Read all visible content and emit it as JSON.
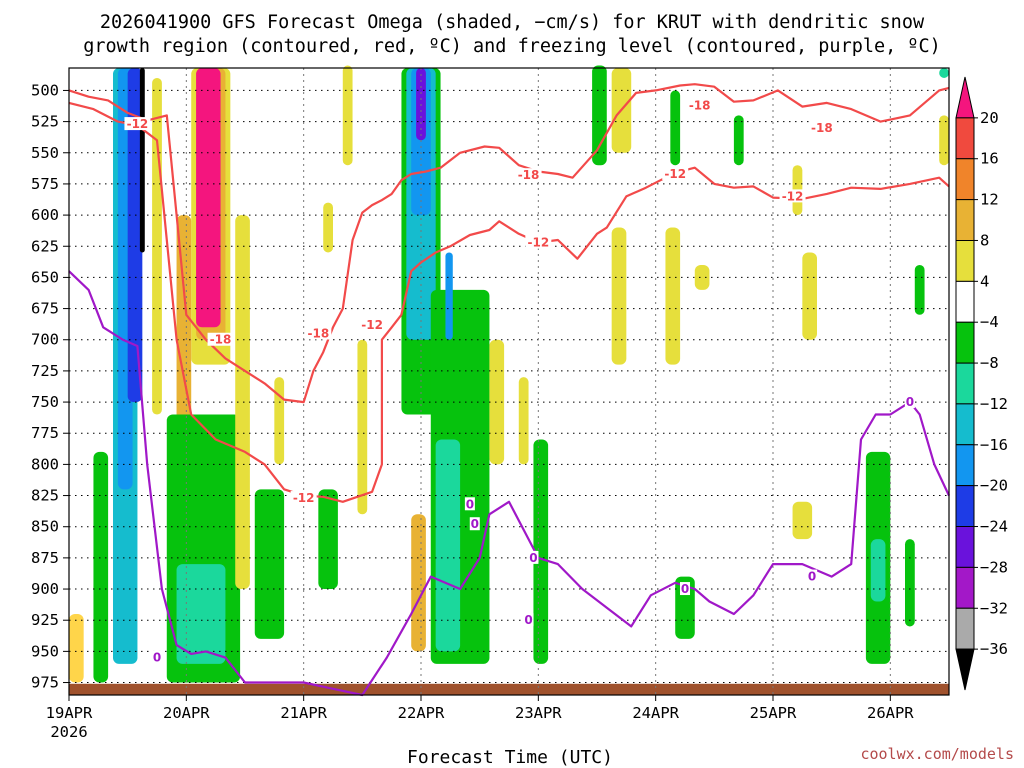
{
  "chart_data": {
    "type": "heatmap",
    "title_line1": "2026041900 GFS Forecast Omega (shaded, −cm/s) for KRUT with dendritic snow",
    "title_line2": "growth region (contoured, red, ºC) and freezing level (contoured, purple, ºC)",
    "xlabel": "Forecast Time (UTC)",
    "credit": "coolwx.com/models",
    "x_ticks": [
      {
        "label": "19APR",
        "label2": "2026",
        "t": 0
      },
      {
        "label": "20APR",
        "t": 24
      },
      {
        "label": "21APR",
        "t": 48
      },
      {
        "label": "22APR",
        "t": 72
      },
      {
        "label": "23APR",
        "t": 96
      },
      {
        "label": "24APR",
        "t": 120
      },
      {
        "label": "25APR",
        "t": 144
      },
      {
        "label": "26APR",
        "t": 168
      }
    ],
    "xlim": [
      0,
      180
    ],
    "y_ticks": [
      500,
      525,
      550,
      575,
      600,
      625,
      650,
      675,
      700,
      725,
      750,
      775,
      800,
      825,
      850,
      875,
      900,
      925,
      950,
      975
    ],
    "ylim": [
      482,
      985
    ],
    "grid": true,
    "colorbar": {
      "labels": [
        "20",
        "16",
        "12",
        "8",
        "4",
        "−4",
        "−8",
        "−12",
        "−16",
        "−20",
        "−24",
        "−28",
        "−32",
        "−36"
      ],
      "colors": [
        "#f4157e",
        "#f04a3e",
        "#f0842a",
        "#e8b234",
        "#e6df3c",
        "#ffffff",
        "#06c20d",
        "#1bd89c",
        "#15bcce",
        "#1296f0",
        "#1e3ce6",
        "#6a12dc",
        "#a318c8",
        "#aaaaaa",
        "#000000"
      ]
    },
    "ground": {
      "color": "#a0522d",
      "label": "terrain"
    },
    "omega_areas": [
      {
        "c": "#ffd54a",
        "t0": 0,
        "t1": 3,
        "p0": 920,
        "p1": 975
      },
      {
        "c": "#06c20d",
        "t0": 5,
        "t1": 8,
        "p0": 790,
        "p1": 975
      },
      {
        "c": "#15bcce",
        "t0": 9,
        "t1": 14,
        "p0": 482,
        "p1": 960
      },
      {
        "c": "#1296f0",
        "t0": 10,
        "t1": 13,
        "p0": 482,
        "p1": 820
      },
      {
        "c": "#1e3ce6",
        "t0": 12,
        "t1": 15,
        "p0": 482,
        "p1": 750
      },
      {
        "c": "#000000",
        "t0": 14.5,
        "t1": 15.5,
        "p0": 482,
        "p1": 630
      },
      {
        "c": "#e6df3c",
        "t0": 17,
        "t1": 19,
        "p0": 490,
        "p1": 760
      },
      {
        "c": "#e6df3c",
        "t0": 25,
        "t1": 33,
        "p0": 482,
        "p1": 720
      },
      {
        "c": "#e8b234",
        "t0": 26,
        "t1": 32,
        "p0": 482,
        "p1": 700
      },
      {
        "c": "#f4157e",
        "t0": 26,
        "t1": 31,
        "p0": 482,
        "p1": 690
      },
      {
        "c": "#e8b234",
        "t0": 22,
        "t1": 25,
        "p0": 600,
        "p1": 900
      },
      {
        "c": "#06c20d",
        "t0": 20,
        "t1": 35,
        "p0": 760,
        "p1": 975
      },
      {
        "c": "#1bd89c",
        "t0": 22,
        "t1": 32,
        "p0": 880,
        "p1": 960
      },
      {
        "c": "#e6df3c",
        "t0": 34,
        "t1": 37,
        "p0": 600,
        "p1": 900
      },
      {
        "c": "#e6df3c",
        "t0": 42,
        "t1": 44,
        "p0": 730,
        "p1": 800
      },
      {
        "c": "#06c20d",
        "t0": 38,
        "t1": 44,
        "p0": 820,
        "p1": 940
      },
      {
        "c": "#e6df3c",
        "t0": 52,
        "t1": 54,
        "p0": 590,
        "p1": 630
      },
      {
        "c": "#06c20d",
        "t0": 51,
        "t1": 55,
        "p0": 820,
        "p1": 900
      },
      {
        "c": "#e6df3c",
        "t0": 56,
        "t1": 58,
        "p0": 480,
        "p1": 560
      },
      {
        "c": "#e6df3c",
        "t0": 59,
        "t1": 61,
        "p0": 700,
        "p1": 840
      },
      {
        "c": "#06c20d",
        "t0": 68,
        "t1": 76,
        "p0": 482,
        "p1": 760
      },
      {
        "c": "#15bcce",
        "t0": 69,
        "t1": 75,
        "p0": 482,
        "p1": 700
      },
      {
        "c": "#1296f0",
        "t0": 70,
        "t1": 74,
        "p0": 482,
        "p1": 600
      },
      {
        "c": "#6a12dc",
        "t0": 71,
        "t1": 73,
        "p0": 482,
        "p1": 540
      },
      {
        "c": "#e8b234",
        "t0": 70,
        "t1": 73,
        "p0": 840,
        "p1": 950
      },
      {
        "c": "#06c20d",
        "t0": 74,
        "t1": 86,
        "p0": 660,
        "p1": 960
      },
      {
        "c": "#1bd89c",
        "t0": 75,
        "t1": 80,
        "p0": 780,
        "p1": 950
      },
      {
        "c": "#1296f0",
        "t0": 77,
        "t1": 78.5,
        "p0": 630,
        "p1": 700
      },
      {
        "c": "#e6df3c",
        "t0": 86,
        "t1": 89,
        "p0": 700,
        "p1": 800
      },
      {
        "c": "#e6df3c",
        "t0": 92,
        "t1": 94,
        "p0": 730,
        "p1": 800
      },
      {
        "c": "#06c20d",
        "t0": 95,
        "t1": 98,
        "p0": 780,
        "p1": 960
      },
      {
        "c": "#06c20d",
        "t0": 107,
        "t1": 110,
        "p0": 480,
        "p1": 560
      },
      {
        "c": "#e6df3c",
        "t0": 111,
        "t1": 115,
        "p0": 482,
        "p1": 550
      },
      {
        "c": "#e6df3c",
        "t0": 111,
        "t1": 114,
        "p0": 610,
        "p1": 720
      },
      {
        "c": "#06c20d",
        "t0": 123,
        "t1": 125,
        "p0": 500,
        "p1": 560
      },
      {
        "c": "#06c20d",
        "t0": 124,
        "t1": 128,
        "p0": 890,
        "p1": 940
      },
      {
        "c": "#e6df3c",
        "t0": 122,
        "t1": 125,
        "p0": 610,
        "p1": 720
      },
      {
        "c": "#e6df3c",
        "t0": 128,
        "t1": 131,
        "p0": 640,
        "p1": 660
      },
      {
        "c": "#06c20d",
        "t0": 136,
        "t1": 138,
        "p0": 520,
        "p1": 560
      },
      {
        "c": "#e6df3c",
        "t0": 148,
        "t1": 150,
        "p0": 560,
        "p1": 600
      },
      {
        "c": "#e6df3c",
        "t0": 150,
        "t1": 153,
        "p0": 630,
        "p1": 700
      },
      {
        "c": "#e6df3c",
        "t0": 148,
        "t1": 152,
        "p0": 830,
        "p1": 860
      },
      {
        "c": "#06c20d",
        "t0": 163,
        "t1": 168,
        "p0": 790,
        "p1": 960
      },
      {
        "c": "#1bd89c",
        "t0": 164,
        "t1": 167,
        "p0": 860,
        "p1": 910
      },
      {
        "c": "#06c20d",
        "t0": 173,
        "t1": 175,
        "p0": 640,
        "p1": 680
      },
      {
        "c": "#06c20d",
        "t0": 171,
        "t1": 173,
        "p0": 860,
        "p1": 930
      },
      {
        "c": "#e6df3c",
        "t0": 178,
        "t1": 180,
        "p0": 520,
        "p1": 560
      },
      {
        "c": "#1bd89c",
        "t0": 178,
        "t1": 180,
        "p0": 482,
        "p1": 490
      }
    ],
    "contours": [
      {
        "name": "-18",
        "color": "#f24a4a",
        "points": [
          [
            0,
            500
          ],
          [
            4,
            505
          ],
          [
            8,
            508
          ],
          [
            12,
            518
          ],
          [
            16,
            524
          ],
          [
            20,
            520
          ],
          [
            22,
            600
          ],
          [
            24,
            680
          ],
          [
            28,
            700
          ],
          [
            32,
            715
          ],
          [
            40,
            735
          ],
          [
            44,
            748
          ],
          [
            48,
            750
          ],
          [
            50,
            725
          ],
          [
            52,
            710
          ],
          [
            54,
            690
          ],
          [
            56,
            675
          ],
          [
            58,
            620
          ],
          [
            60,
            598
          ],
          [
            62,
            592
          ],
          [
            64,
            588
          ],
          [
            66,
            583
          ],
          [
            68,
            572
          ],
          [
            70,
            567
          ],
          [
            73,
            565
          ],
          [
            76,
            562
          ],
          [
            80,
            550
          ],
          [
            85,
            545
          ],
          [
            88,
            546
          ],
          [
            92,
            560
          ],
          [
            96,
            565
          ],
          [
            100,
            567
          ],
          [
            103,
            570
          ],
          [
            108,
            548
          ],
          [
            112,
            520
          ],
          [
            116,
            502
          ],
          [
            120,
            500
          ],
          [
            125,
            496
          ],
          [
            128,
            495
          ],
          [
            132,
            497
          ],
          [
            136,
            509
          ],
          [
            140,
            508
          ],
          [
            145,
            500
          ],
          [
            150,
            513
          ],
          [
            155,
            510
          ],
          [
            160,
            515
          ],
          [
            166,
            525
          ],
          [
            172,
            520
          ],
          [
            178,
            500
          ],
          [
            180,
            498
          ]
        ]
      },
      {
        "name": "-12",
        "color": "#f24a4a",
        "points": [
          [
            0,
            510
          ],
          [
            5,
            515
          ],
          [
            10,
            525
          ],
          [
            14,
            528
          ],
          [
            18,
            540
          ],
          [
            20,
            620
          ],
          [
            22,
            700
          ],
          [
            25,
            760
          ],
          [
            30,
            780
          ],
          [
            36,
            790
          ],
          [
            40,
            800
          ],
          [
            44,
            820
          ],
          [
            48,
            825
          ],
          [
            52,
            826
          ],
          [
            56,
            830
          ],
          [
            62,
            822
          ],
          [
            64,
            800
          ],
          [
            64,
            700
          ],
          [
            66,
            690
          ],
          [
            68,
            680
          ],
          [
            70,
            645
          ],
          [
            72,
            638
          ],
          [
            75,
            630
          ],
          [
            78,
            625
          ],
          [
            82,
            616
          ],
          [
            86,
            612
          ],
          [
            88,
            605
          ],
          [
            92,
            615
          ],
          [
            96,
            622
          ],
          [
            100,
            620
          ],
          [
            104,
            635
          ],
          [
            108,
            615
          ],
          [
            110,
            610
          ],
          [
            114,
            585
          ],
          [
            118,
            578
          ],
          [
            122,
            570
          ],
          [
            124,
            566
          ],
          [
            128,
            562
          ],
          [
            132,
            575
          ],
          [
            136,
            578
          ],
          [
            140,
            577
          ],
          [
            144,
            586
          ],
          [
            150,
            587
          ],
          [
            155,
            583
          ],
          [
            160,
            578
          ],
          [
            166,
            579
          ],
          [
            172,
            575
          ],
          [
            178,
            570
          ],
          [
            180,
            577
          ]
        ]
      },
      {
        "name": "0",
        "color": "#a018c8",
        "points": [
          [
            0,
            645
          ],
          [
            4,
            660
          ],
          [
            7,
            690
          ],
          [
            11,
            700
          ],
          [
            14,
            705
          ],
          [
            16,
            800
          ],
          [
            19,
            900
          ],
          [
            22,
            945
          ],
          [
            25,
            952
          ],
          [
            28,
            950
          ],
          [
            32,
            955
          ],
          [
            36,
            975
          ],
          [
            40,
            975
          ],
          [
            48,
            975
          ],
          [
            54,
            980
          ],
          [
            60,
            985
          ],
          [
            65,
            955
          ],
          [
            70,
            920
          ],
          [
            74,
            890
          ],
          [
            80,
            900
          ],
          [
            84,
            875
          ],
          [
            86,
            840
          ],
          [
            90,
            830
          ],
          [
            94,
            860
          ],
          [
            96,
            875
          ],
          [
            100,
            880
          ],
          [
            105,
            900
          ],
          [
            110,
            915
          ],
          [
            115,
            930
          ],
          [
            119,
            905
          ],
          [
            124,
            895
          ],
          [
            128,
            900
          ],
          [
            131,
            910
          ],
          [
            136,
            920
          ],
          [
            140,
            905
          ],
          [
            144,
            880
          ],
          [
            150,
            880
          ],
          [
            156,
            890
          ],
          [
            160,
            880
          ],
          [
            162,
            780
          ],
          [
            165,
            760
          ],
          [
            168,
            760
          ],
          [
            172,
            750
          ],
          [
            174,
            760
          ],
          [
            177,
            800
          ],
          [
            180,
            825
          ]
        ]
      }
    ],
    "contour_labels": [
      {
        "text": "-12",
        "color": "#f24a4a",
        "t": 14,
        "p": 527
      },
      {
        "text": "-18",
        "color": "#f24a4a",
        "t": 31,
        "p": 700
      },
      {
        "text": "-18",
        "color": "#f24a4a",
        "t": 51,
        "p": 695
      },
      {
        "text": "-12",
        "color": "#f24a4a",
        "t": 62,
        "p": 688
      },
      {
        "text": "-12",
        "color": "#f24a4a",
        "t": 48,
        "p": 827
      },
      {
        "text": "-18",
        "color": "#f24a4a",
        "t": 94,
        "p": 568
      },
      {
        "text": "-12",
        "color": "#f24a4a",
        "t": 96,
        "p": 622
      },
      {
        "text": "-18",
        "color": "#f24a4a",
        "t": 129,
        "p": 512
      },
      {
        "text": "-12",
        "color": "#f24a4a",
        "t": 124,
        "p": 567
      },
      {
        "text": "-18",
        "color": "#f24a4a",
        "t": 154,
        "p": 530
      },
      {
        "text": "-12",
        "color": "#f24a4a",
        "t": 148,
        "p": 585
      },
      {
        "text": "0",
        "color": "#a018c8",
        "t": 18,
        "p": 955
      },
      {
        "text": "0",
        "color": "#a018c8",
        "t": 82,
        "p": 832
      },
      {
        "text": "0",
        "color": "#a018c8",
        "t": 83,
        "p": 848
      },
      {
        "text": "0",
        "color": "#a018c8",
        "t": 94,
        "p": 925
      },
      {
        "text": "0",
        "color": "#a018c8",
        "t": 95,
        "p": 875
      },
      {
        "text": "0",
        "color": "#a018c8",
        "t": 126,
        "p": 900
      },
      {
        "text": "0",
        "color": "#a018c8",
        "t": 152,
        "p": 890
      },
      {
        "text": "0",
        "color": "#a018c8",
        "t": 172,
        "p": 750
      }
    ]
  }
}
